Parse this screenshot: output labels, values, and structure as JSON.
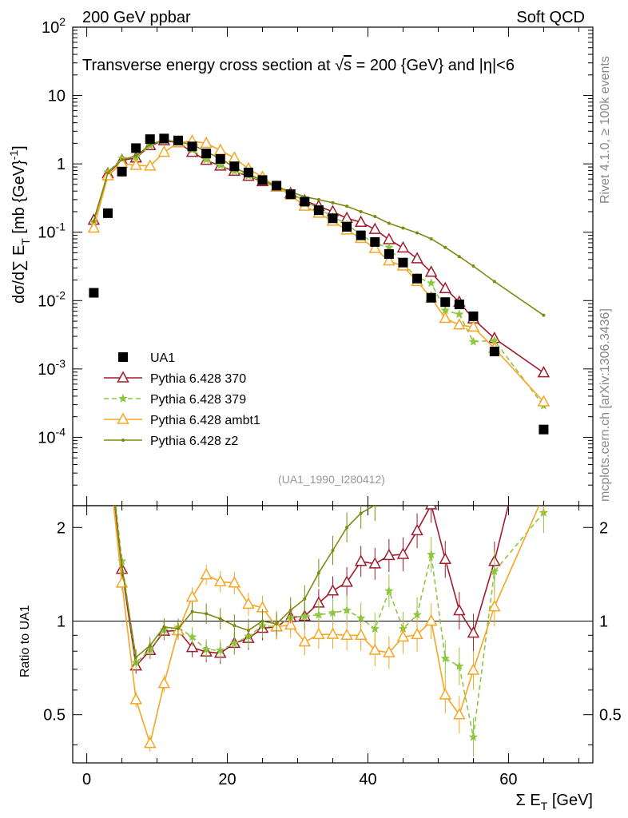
{
  "header": {
    "left": "200 GeV ppbar",
    "right": "Soft QCD"
  },
  "side_labels": {
    "rivet": "Rivet 4.1.0, ≥ 100k events",
    "mcplots": "mcplots.cern.ch [arXiv:1306.3436]"
  },
  "reference": "(UA1_1990_I280412)",
  "chart_data": {
    "type": "line",
    "title": "Transverse energy cross section at √s = 200 {GeV} and |η|<6",
    "title_parts": {
      "pre": "Transverse energy cross section at ",
      "sqrt": "√",
      "s": "s",
      "post": " = 200 {GeV} and |η|<6"
    },
    "xlabel": "Σ E",
    "xlabel_sub": "T",
    "xlabel_unit": " [GeV]",
    "ylabel": "dσ/d∑ E",
    "ylabel_sub": "T",
    "ylabel_unit": " [mb {GeV}",
    "ylabel_sup": "-1",
    "ylabel_end": "]",
    "ratio_ylabel": "Ratio to UA1",
    "xlim": [
      -2,
      72
    ],
    "ylim_log": [
      -5,
      2
    ],
    "ratio_ylim": [
      0.35,
      2.35
    ],
    "x_ticks": [
      "0",
      "20",
      "40",
      "60"
    ],
    "y_ticks": [
      {
        "base": "10",
        "exp": "-4"
      },
      {
        "base": "10",
        "exp": "-3"
      },
      {
        "base": "10",
        "exp": "-2"
      },
      {
        "base": "10",
        "exp": "-1"
      },
      {
        "base": "1",
        "exp": ""
      },
      {
        "base": "10",
        "exp": ""
      },
      {
        "base": "10",
        "exp": "2"
      }
    ],
    "ratio_ticks": [
      "0.5",
      "1",
      "2"
    ],
    "x": [
      1,
      3,
      5,
      7,
      9,
      11,
      13,
      15,
      17,
      19,
      21,
      23,
      25,
      27,
      29,
      31,
      33,
      35,
      37,
      39,
      41,
      43,
      45,
      47,
      49,
      51,
      53,
      55,
      58,
      65
    ],
    "data": {
      "name": "UA1",
      "values": [
        0.013,
        0.19,
        0.77,
        1.7,
        2.3,
        2.35,
        2.2,
        1.8,
        1.42,
        1.18,
        0.92,
        0.75,
        0.58,
        0.48,
        0.36,
        0.28,
        0.21,
        0.16,
        0.12,
        0.09,
        0.072,
        0.048,
        0.036,
        0.021,
        0.011,
        0.0095,
        0.0088,
        0.0059,
        0.0018,
        0.00013
      ]
    },
    "series": [
      {
        "name": "Pythia 6.428 370",
        "color": "#a01c2c",
        "marker": "triangle-open",
        "dash": "",
        "values": [
          0.15,
          0.72,
          1.13,
          1.22,
          1.85,
          2.18,
          2.05,
          1.48,
          1.13,
          0.93,
          0.78,
          0.66,
          0.55,
          0.46,
          0.37,
          0.29,
          0.24,
          0.2,
          0.16,
          0.14,
          0.11,
          0.078,
          0.059,
          0.041,
          0.026,
          0.015,
          0.0095,
          0.0054,
          0.0028,
          0.00088
        ]
      },
      {
        "name": "Pythia 6.428 379",
        "color": "#8ec63f",
        "marker": "star",
        "dash": "6,4",
        "values": [
          0.14,
          0.76,
          1.2,
          1.25,
          1.86,
          2.2,
          2.1,
          1.6,
          1.15,
          0.95,
          0.78,
          0.67,
          0.56,
          0.46,
          0.37,
          0.29,
          0.22,
          0.17,
          0.13,
          0.092,
          0.068,
          0.06,
          0.034,
          0.022,
          0.018,
          0.0072,
          0.0063,
          0.0025,
          0.0026,
          0.00029
        ]
      },
      {
        "name": "Pythia 6.428 ambt1",
        "color": "#f5a623",
        "marker": "triangle-open",
        "dash": "",
        "values": [
          0.115,
          0.67,
          1.02,
          0.95,
          0.93,
          1.48,
          2.05,
          2.15,
          2.0,
          1.58,
          1.22,
          0.85,
          0.64,
          0.46,
          0.35,
          0.24,
          0.19,
          0.145,
          0.108,
          0.081,
          0.058,
          0.038,
          0.032,
          0.019,
          0.011,
          0.0055,
          0.0044,
          0.0041,
          0.002,
          0.00033
        ]
      },
      {
        "name": "Pythia 6.428 z2",
        "color": "#7f8a12",
        "marker": "dot",
        "dash": "",
        "values": [
          0.145,
          0.74,
          1.15,
          1.3,
          1.92,
          2.25,
          2.08,
          1.93,
          1.5,
          1.2,
          0.89,
          0.7,
          0.58,
          0.47,
          0.39,
          0.33,
          0.3,
          0.27,
          0.24,
          0.2,
          0.17,
          0.135,
          0.115,
          0.098,
          0.08,
          0.06,
          0.044,
          0.032,
          0.019,
          0.0061
        ]
      }
    ],
    "legend_position": "bottom-left"
  }
}
